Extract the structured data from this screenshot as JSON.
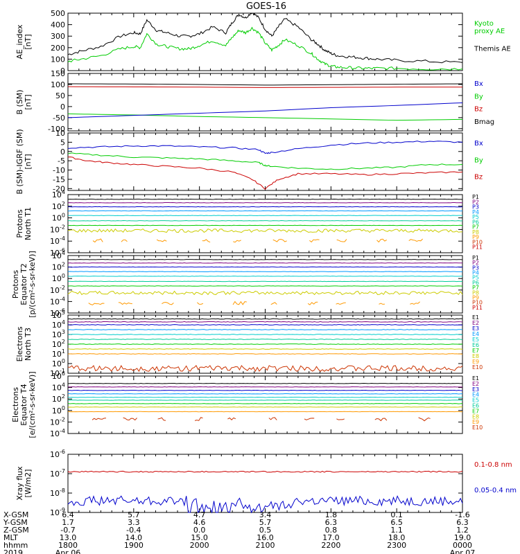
{
  "title": "GOES-16",
  "colors": {
    "black": "#000000",
    "green": "#00cc00",
    "blue": "#0000cc",
    "red": "#cc0000",
    "P": [
      "#000000",
      "#800080",
      "#0000cc",
      "#0099ff",
      "#00cccc",
      "#00cc99",
      "#00cc00",
      "#cccc00",
      "#ff9900",
      "#cc3300",
      "#cc0000"
    ],
    "E": [
      "#000000",
      "#800080",
      "#0000cc",
      "#0099ff",
      "#00cccc",
      "#00cc99",
      "#00cc00",
      "#cccc00",
      "#ff9900",
      "#cc3300"
    ]
  },
  "time_axis": {
    "start_hhmm": "1800",
    "end_hhmm": "0000",
    "major_ticks_hours": [
      0,
      1,
      2,
      3,
      4,
      5,
      6
    ]
  },
  "footer": {
    "row_labels": [
      "X-GSM",
      "Y-GSM",
      "Z-GSM",
      "MLT",
      "hhmm",
      "2019"
    ],
    "columns": [
      {
        "values": [
          "6.4",
          "1.7",
          "-0.7",
          "13.0",
          "1800",
          "Apr 06"
        ]
      },
      {
        "values": [
          "5.7",
          "3.3",
          "-0.4",
          "14.0",
          "1900",
          ""
        ]
      },
      {
        "values": [
          "4.7",
          "4.6",
          "0.0",
          "15.0",
          "2000",
          ""
        ]
      },
      {
        "values": [
          "3.4",
          "5.7",
          "0.5",
          "16.0",
          "2100",
          ""
        ]
      },
      {
        "values": [
          "1.8",
          "6.3",
          "0.8",
          "17.0",
          "2200",
          ""
        ]
      },
      {
        "values": [
          "0.1",
          "6.5",
          "1.1",
          "18.0",
          "2300",
          ""
        ]
      },
      {
        "values": [
          "-1.6",
          "6.3",
          "1.2",
          "19.0",
          "0000",
          "Apr 07"
        ]
      }
    ]
  },
  "chart_data": [
    {
      "type": "line",
      "ylabel": "AE_index\n[nT]",
      "ylim": [
        0,
        500
      ],
      "yticks": [
        {
          "v": 0,
          "l": "0"
        },
        {
          "v": 100,
          "l": "100"
        },
        {
          "v": 200,
          "l": "200"
        },
        {
          "v": 300,
          "l": "300"
        },
        {
          "v": 400,
          "l": "400"
        },
        {
          "v": 500,
          "l": "500"
        }
      ],
      "legend": [
        {
          "text": "Kyoto\nproxy AE",
          "color": "#00cc00"
        },
        {
          "text": "Themis AE",
          "color": "#000000"
        }
      ],
      "series": [
        {
          "name": "Themis AE",
          "color": "#000000",
          "x": [
            0,
            0.2,
            0.5,
            0.8,
            1.0,
            1.1,
            1.2,
            1.35,
            1.5,
            1.7,
            1.85,
            2.0,
            2.2,
            2.4,
            2.5,
            2.6,
            2.7,
            2.8,
            2.9,
            3.0,
            3.1,
            3.2,
            3.3,
            3.5,
            3.7,
            3.8,
            3.9,
            4.0,
            4.1,
            4.3,
            4.5,
            4.7,
            5.0,
            5.5,
            6.0
          ],
          "y": [
            140,
            170,
            210,
            300,
            330,
            320,
            440,
            350,
            330,
            300,
            300,
            320,
            380,
            330,
            420,
            490,
            460,
            510,
            460,
            360,
            300,
            380,
            450,
            380,
            270,
            230,
            180,
            150,
            130,
            120,
            110,
            100,
            90,
            80,
            70
          ]
        },
        {
          "name": "Kyoto proxy AE",
          "color": "#00cc00",
          "x": [
            0,
            0.2,
            0.5,
            0.8,
            1.0,
            1.1,
            1.2,
            1.35,
            1.5,
            1.7,
            1.85,
            2.0,
            2.2,
            2.4,
            2.5,
            2.6,
            2.7,
            2.8,
            2.9,
            3.0,
            3.1,
            3.2,
            3.3,
            3.5,
            3.7,
            3.8,
            3.9,
            4.0,
            4.1,
            4.3,
            4.5,
            4.7,
            5.0,
            5.5,
            6.0
          ],
          "y": [
            80,
            100,
            130,
            190,
            210,
            200,
            320,
            230,
            210,
            190,
            190,
            220,
            260,
            220,
            290,
            350,
            330,
            370,
            330,
            240,
            180,
            220,
            270,
            220,
            150,
            100,
            60,
            40,
            30,
            25,
            20,
            20,
            20,
            15,
            15
          ]
        }
      ]
    },
    {
      "type": "line",
      "ylabel": "B (SM)\n[nT]",
      "ylim": [
        -110,
        150
      ],
      "yticks": [
        {
          "v": -100,
          "l": "-100"
        },
        {
          "v": -50,
          "l": "-50"
        },
        {
          "v": 0,
          "l": "0"
        },
        {
          "v": 50,
          "l": "50"
        },
        {
          "v": 100,
          "l": "100"
        },
        {
          "v": 150,
          "l": "150"
        }
      ],
      "legend": [
        {
          "text": "Bx",
          "color": "#0000cc"
        },
        {
          "text": "By",
          "color": "#00cc00"
        },
        {
          "text": "Bz",
          "color": "#cc0000"
        },
        {
          "text": "Bmag",
          "color": "#000000"
        }
      ],
      "series": [
        {
          "name": "Bmag",
          "color": "#000000",
          "x": [
            0,
            1,
            2,
            3,
            4,
            5,
            6
          ],
          "y": [
            103,
            102,
            100,
            97,
            99,
            101,
            103
          ]
        },
        {
          "name": "Bz",
          "color": "#cc0000",
          "x": [
            0,
            1,
            2,
            3,
            4,
            5,
            6
          ],
          "y": [
            90,
            89,
            88,
            86,
            87,
            88,
            88
          ]
        },
        {
          "name": "By",
          "color": "#00cc00",
          "x": [
            0,
            1,
            2,
            3,
            4,
            5,
            6
          ],
          "y": [
            -33,
            -38,
            -45,
            -50,
            -56,
            -62,
            -58
          ]
        },
        {
          "name": "Bx",
          "color": "#0000cc",
          "x": [
            0,
            1,
            2,
            3,
            4,
            5,
            6
          ],
          "y": [
            -50,
            -40,
            -30,
            -20,
            -5,
            5,
            17
          ]
        }
      ]
    },
    {
      "type": "line",
      "ylabel": "B (SM)-IGRF (SM)\n[nT]",
      "ylim": [
        -21,
        10
      ],
      "yticks": [
        {
          "v": -20,
          "l": "-20"
        },
        {
          "v": -15,
          "l": "-15"
        },
        {
          "v": -10,
          "l": "-10"
        },
        {
          "v": -5,
          "l": "-5"
        },
        {
          "v": 0,
          "l": "0"
        },
        {
          "v": 5,
          "l": "5"
        },
        {
          "v": 10,
          "l": "10"
        }
      ],
      "legend": [
        {
          "text": "Bx",
          "color": "#0000cc"
        },
        {
          "text": "By",
          "color": "#00cc00"
        },
        {
          "text": "Bz",
          "color": "#cc0000"
        }
      ],
      "series": [
        {
          "name": "Bx",
          "color": "#0000cc",
          "x": [
            0,
            0.5,
            1,
            1.5,
            2,
            2.5,
            2.9,
            3.0,
            3.1,
            3.5,
            4,
            4.5,
            5,
            5.5,
            6
          ],
          "y": [
            2,
            2.5,
            3,
            3,
            2.5,
            2,
            1,
            -1,
            -0.5,
            1.5,
            3.5,
            4.5,
            5,
            5.5,
            5
          ]
        },
        {
          "name": "By",
          "color": "#00cc00",
          "x": [
            0,
            0.5,
            1,
            1.5,
            2,
            2.5,
            2.9,
            3.0,
            3.1,
            3.5,
            4,
            4.5,
            5,
            5.5,
            6
          ],
          "y": [
            -1,
            -2,
            -3,
            -3.5,
            -4,
            -5,
            -6,
            -7.5,
            -8,
            -9,
            -9.5,
            -9,
            -8.5,
            -7,
            -7
          ]
        },
        {
          "name": "Bz",
          "color": "#cc0000",
          "x": [
            0,
            0.3,
            0.6,
            1,
            1.5,
            2,
            2.5,
            2.8,
            3.0,
            3.2,
            3.5,
            4,
            4.5,
            5,
            5.5,
            6
          ],
          "y": [
            -3,
            -5,
            -6,
            -7,
            -8,
            -9,
            -11,
            -15,
            -20,
            -15,
            -12,
            -12,
            -12.5,
            -12,
            -11.5,
            -11
          ]
        }
      ]
    },
    {
      "type": "line",
      "log": true,
      "ylabel": "Protons\nNorth T1",
      "ylim": [
        -6,
        4
      ],
      "yticks": [
        {
          "v": 4,
          "b": "10",
          "e": "4"
        },
        {
          "v": 2,
          "b": "10",
          "e": "2"
        },
        {
          "v": 0,
          "b": "10",
          "e": "0"
        },
        {
          "v": -2,
          "b": "10",
          "e": "-2"
        },
        {
          "v": -4,
          "b": "10",
          "e": "-4"
        },
        {
          "v": -6,
          "b": "10",
          "e": "-6"
        }
      ],
      "legend_small": [
        "P1",
        "P2",
        "P3",
        "P4",
        "P5",
        "P6",
        "P7",
        "P8",
        "P9",
        "P10",
        "P11"
      ],
      "legend_palette": "P",
      "series": [
        {
          "name": "P1",
          "log10": 3.2
        },
        {
          "name": "P2",
          "log10": 2.6
        },
        {
          "name": "P3",
          "log10": 1.9
        },
        {
          "name": "P4",
          "log10": 1.2
        },
        {
          "name": "P5",
          "log10": 0.4
        },
        {
          "name": "P6",
          "log10": -0.5
        },
        {
          "name": "P7",
          "log10": -1.3
        },
        {
          "name": "P8",
          "log10": -2.2,
          "noisy": true
        },
        {
          "name": "P9",
          "log10": -3.9,
          "sparse": true
        }
      ]
    },
    {
      "type": "line",
      "log": true,
      "ylabel": "Protons\nEquator T2\n[p/(cm²-s-sr-keV)]",
      "ylim": [
        -6,
        4
      ],
      "yticks": [
        {
          "v": 4,
          "b": "10",
          "e": "4"
        },
        {
          "v": 2,
          "b": "10",
          "e": "2"
        },
        {
          "v": 0,
          "b": "10",
          "e": "0"
        },
        {
          "v": -2,
          "b": "10",
          "e": "-2"
        },
        {
          "v": -4,
          "b": "10",
          "e": "-4"
        },
        {
          "v": -6,
          "b": "10",
          "e": "-6"
        }
      ],
      "legend_small": [
        "P1",
        "P2",
        "P3",
        "P4",
        "P5",
        "P6",
        "P7",
        "P8",
        "P9",
        "P10",
        "P11"
      ],
      "legend_palette": "P",
      "series": [
        {
          "name": "P1",
          "log10": 3.3
        },
        {
          "name": "P2",
          "log10": 2.7
        },
        {
          "name": "P3",
          "log10": 2.0
        },
        {
          "name": "P4",
          "log10": 1.2
        },
        {
          "name": "P5",
          "log10": 0.4
        },
        {
          "name": "P6",
          "log10": -0.5
        },
        {
          "name": "P7",
          "log10": -1.3
        },
        {
          "name": "P8",
          "log10": -2.5,
          "noisy": true
        },
        {
          "name": "P9",
          "log10": -4.3,
          "sparse": true
        }
      ]
    },
    {
      "type": "line",
      "log": true,
      "ylabel": "Electrons\nNorth T3",
      "ylim": [
        -1,
        5
      ],
      "yticks": [
        {
          "v": 5,
          "b": "10",
          "e": "5"
        },
        {
          "v": 4,
          "b": "10",
          "e": "4"
        },
        {
          "v": 3,
          "b": "10",
          "e": "3"
        },
        {
          "v": 2,
          "b": "10",
          "e": "2"
        },
        {
          "v": 1,
          "b": "10",
          "e": "1"
        },
        {
          "v": 0,
          "b": "10",
          "e": "0"
        },
        {
          "v": -1,
          "b": "10",
          "e": "-1"
        }
      ],
      "legend_small": [
        "E1",
        "E2",
        "E3",
        "E4",
        "E5",
        "E6",
        "E7",
        "E8",
        "E9",
        "E10"
      ],
      "legend_palette": "E",
      "series": [
        {
          "name": "E1",
          "log10": 4.6
        },
        {
          "name": "E2",
          "log10": 4.3
        },
        {
          "name": "E3",
          "log10": 4.0
        },
        {
          "name": "E4",
          "log10": 3.5
        },
        {
          "name": "E5",
          "log10": 3.0
        },
        {
          "name": "E6",
          "log10": 2.5
        },
        {
          "name": "E7",
          "log10": 2.0
        },
        {
          "name": "E8",
          "log10": 1.5
        },
        {
          "name": "E9",
          "log10": 1.0
        },
        {
          "name": "E10",
          "log10": -0.5,
          "noisy": true
        }
      ]
    },
    {
      "type": "line",
      "log": true,
      "ylabel": "Electrons\nEquator T4\n[e/(cm²-s-sr-keV)]",
      "ylim": [
        -4,
        6
      ],
      "yticks": [
        {
          "v": 6,
          "b": "10",
          "e": "6"
        },
        {
          "v": 4,
          "b": "10",
          "e": "4"
        },
        {
          "v": 2,
          "b": "10",
          "e": "2"
        },
        {
          "v": 0,
          "b": "10",
          "e": "0"
        },
        {
          "v": -2,
          "b": "10",
          "e": "-2"
        },
        {
          "v": -4,
          "b": "10",
          "e": "-4"
        }
      ],
      "legend_small": [
        "E1",
        "E2",
        "E3",
        "E4",
        "E5",
        "E6",
        "E7",
        "E8",
        "E9",
        "E10"
      ],
      "legend_palette": "E",
      "series": [
        {
          "name": "E1",
          "log10": 4.7
        },
        {
          "name": "E2",
          "log10": 4.1
        },
        {
          "name": "E3",
          "log10": 3.5
        },
        {
          "name": "E4",
          "log10": 2.9
        },
        {
          "name": "E5",
          "log10": 2.3
        },
        {
          "name": "E6",
          "log10": 1.8
        },
        {
          "name": "E7",
          "log10": 1.2
        },
        {
          "name": "E8",
          "log10": 0.6
        },
        {
          "name": "E9",
          "log10": -0.2
        },
        {
          "name": "E10",
          "log10": -1.5,
          "sparse": true
        }
      ]
    },
    {
      "type": "line",
      "log": true,
      "ylabel": "Xray flux\n[W/m2]",
      "ylim": [
        -9,
        -6
      ],
      "yticks": [
        {
          "v": -6,
          "b": "10",
          "e": "-6"
        },
        {
          "v": -7,
          "b": "10",
          "e": "-7"
        },
        {
          "v": -8,
          "b": "10",
          "e": "-8"
        },
        {
          "v": -9,
          "b": "10",
          "e": "-9"
        }
      ],
      "legend": [
        {
          "text": "0.1-0.8 nm",
          "color": "#cc0000"
        },
        {
          "text": "0.05-0.4 nm",
          "color": "#0000cc"
        }
      ],
      "series": [
        {
          "name": "0.1-0.8 nm",
          "color": "#cc0000",
          "log10": -6.9
        },
        {
          "name": "0.05-0.4 nm",
          "color": "#0000cc",
          "log10": -8.4,
          "noisy": true
        }
      ]
    }
  ]
}
